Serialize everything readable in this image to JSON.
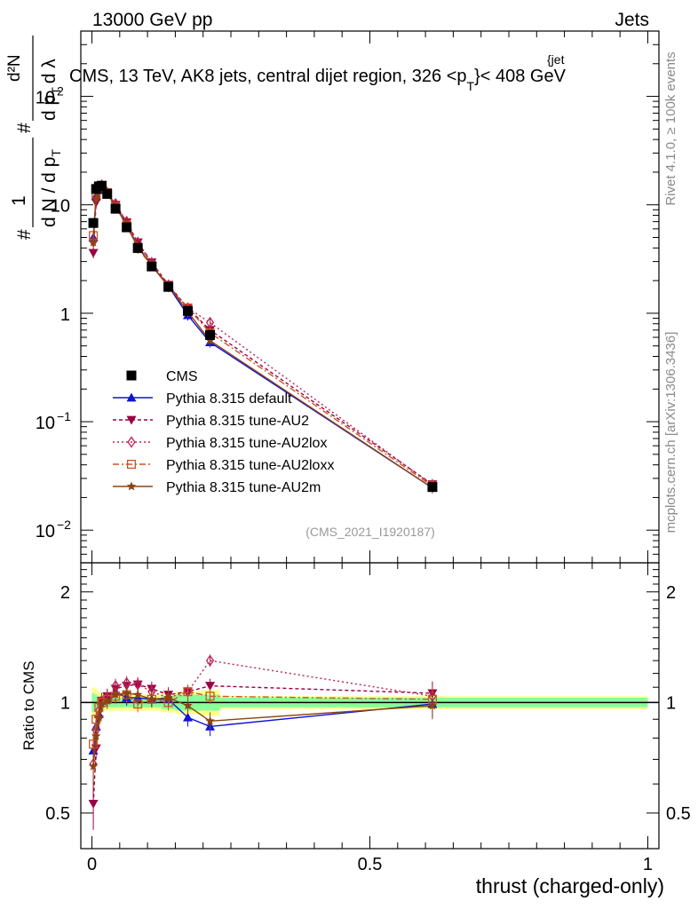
{
  "header": {
    "energy_label": "13000 GeV pp",
    "category_label": "Jets",
    "title_main": "CMS, 13 TeV, AK8 jets, central dijet region, 326 <p",
    "title_sub": "T",
    "title_sup": "{jet",
    "title_end": "}< 408 GeV",
    "analysis_id": "(CMS_2021_I1920187)"
  },
  "side_labels": {
    "rivet": "Rivet 4.1.0, ≥ 100k events",
    "mcplots": "mcplots.cern.ch [arXiv:1306.3436]"
  },
  "axes": {
    "ylabel_main_prefix": "#",
    "ylabel_main_num": "1",
    "ylabel_main_den": "d N / d p",
    "ylabel_main_den_sub": "T",
    "ylabel_main_hash": "#",
    "ylabel_main_num2": "d²N",
    "ylabel_main_den2": "d p",
    "ylabel_main_den2_sub": "T",
    "ylabel_main_den2_end": "d λ",
    "ylabel_ratio": "Ratio to CMS",
    "xlabel": "thrust (charged-only)",
    "main_y_ticks": [
      {
        "value": 0.01,
        "label": "10",
        "exp": "−2"
      },
      {
        "value": 0.1,
        "label": "10",
        "exp": "−1"
      },
      {
        "value": 1,
        "label": "1",
        "exp": ""
      },
      {
        "value": 10,
        "label": "10",
        "exp": ""
      },
      {
        "value": 100,
        "label": "10",
        "exp": "2"
      }
    ],
    "ratio_y_ticks": [
      {
        "value": 0.5,
        "label": "0.5"
      },
      {
        "value": 1,
        "label": "1"
      },
      {
        "value": 2,
        "label": "2"
      }
    ],
    "x_ticks": [
      {
        "value": 0,
        "label": "0"
      },
      {
        "value": 0.5,
        "label": "0.5"
      },
      {
        "value": 1,
        "label": "1"
      }
    ]
  },
  "chart_data": {
    "type": "scatter",
    "title": "CMS, 13 TeV, AK8 jets, central dijet region, 326 < pT(jet) < 408 GeV",
    "xlim": [
      -0.02,
      1.02
    ],
    "ylim_main": [
      0.005,
      400
    ],
    "ylim_ratio": [
      0.4,
      2.4
    ],
    "x": [
      0.0025,
      0.0075,
      0.0125,
      0.0175,
      0.0275,
      0.0425,
      0.0625,
      0.0825,
      0.1075,
      0.1375,
      0.1725,
      0.2125,
      0.6125
    ],
    "data_series": {
      "name": "CMS",
      "values": [
        6.8,
        14.0,
        14.8,
        15.0,
        12.6,
        9.2,
        6.2,
        4.0,
        2.7,
        1.75,
        1.05,
        0.63,
        0.025
      ]
    },
    "series": [
      {
        "name": "Pythia 8.315 default",
        "color": "#1111dd",
        "dash": "",
        "marker": "triangle-up",
        "values": [
          5.0,
          12.0,
          13.7,
          15.1,
          12.9,
          9.8,
          6.4,
          4.1,
          2.75,
          1.78,
          0.96,
          0.54,
          0.0245
        ],
        "ratio": [
          0.74,
          0.86,
          0.93,
          1.01,
          1.03,
          1.07,
          1.03,
          1.03,
          1.02,
          1.02,
          0.91,
          0.86,
          0.99
        ]
      },
      {
        "name": "Pythia 8.315 tune-AU2",
        "color": "#990044",
        "dash": "4,3",
        "marker": "triangle-down",
        "values": [
          3.6,
          10.5,
          13.2,
          15.1,
          13.1,
          10.0,
          6.9,
          4.5,
          2.95,
          1.83,
          1.12,
          0.7,
          0.0265
        ],
        "ratio": [
          0.53,
          0.75,
          0.9,
          1.01,
          1.04,
          1.09,
          1.11,
          1.12,
          1.09,
          1.05,
          1.07,
          1.11,
          1.06
        ]
      },
      {
        "name": "Pythia 8.315 tune-AU2lox",
        "color": "#bb2255",
        "dash": "2,3",
        "marker": "diamond",
        "values": [
          4.6,
          11.7,
          14.1,
          15.2,
          12.9,
          10.2,
          7.0,
          4.5,
          2.9,
          1.8,
          1.12,
          0.82,
          0.026
        ],
        "ratio": [
          0.68,
          0.84,
          0.95,
          1.01,
          1.03,
          1.11,
          1.13,
          1.12,
          1.07,
          1.03,
          1.07,
          1.3,
          1.04
        ]
      },
      {
        "name": "Pythia 8.315 tune-AU2loxx",
        "color": "#cc5522",
        "dash": "7,3,2,3",
        "marker": "square-open",
        "values": [
          5.2,
          12.6,
          14.4,
          15.0,
          12.8,
          9.6,
          6.5,
          3.95,
          2.75,
          1.75,
          1.12,
          0.66,
          0.0255
        ],
        "ratio": [
          0.77,
          0.9,
          0.97,
          1.0,
          1.02,
          1.04,
          1.05,
          0.99,
          1.02,
          1.0,
          1.07,
          1.04,
          1.02
        ]
      },
      {
        "name": "Pythia 8.315 tune-AU2m",
        "color": "#8b4513",
        "dash": "",
        "marker": "star",
        "values": [
          4.5,
          11.4,
          13.5,
          14.9,
          12.7,
          9.7,
          6.6,
          4.2,
          2.75,
          1.8,
          1.03,
          0.56,
          0.0245
        ],
        "ratio": [
          0.67,
          0.81,
          0.91,
          0.99,
          1.01,
          1.05,
          1.06,
          1.05,
          1.02,
          1.03,
          0.98,
          0.89,
          0.98
        ]
      }
    ],
    "ratio_band": {
      "inner": [
        0.06,
        0.05,
        0.04,
        0.03,
        0.03,
        0.03,
        0.03,
        0.03,
        0.03,
        0.04,
        0.05,
        0.05,
        0.03
      ],
      "outer": [
        0.1,
        0.09,
        0.07,
        0.06,
        0.05,
        0.05,
        0.05,
        0.05,
        0.05,
        0.06,
        0.07,
        0.08,
        0.04
      ]
    }
  }
}
